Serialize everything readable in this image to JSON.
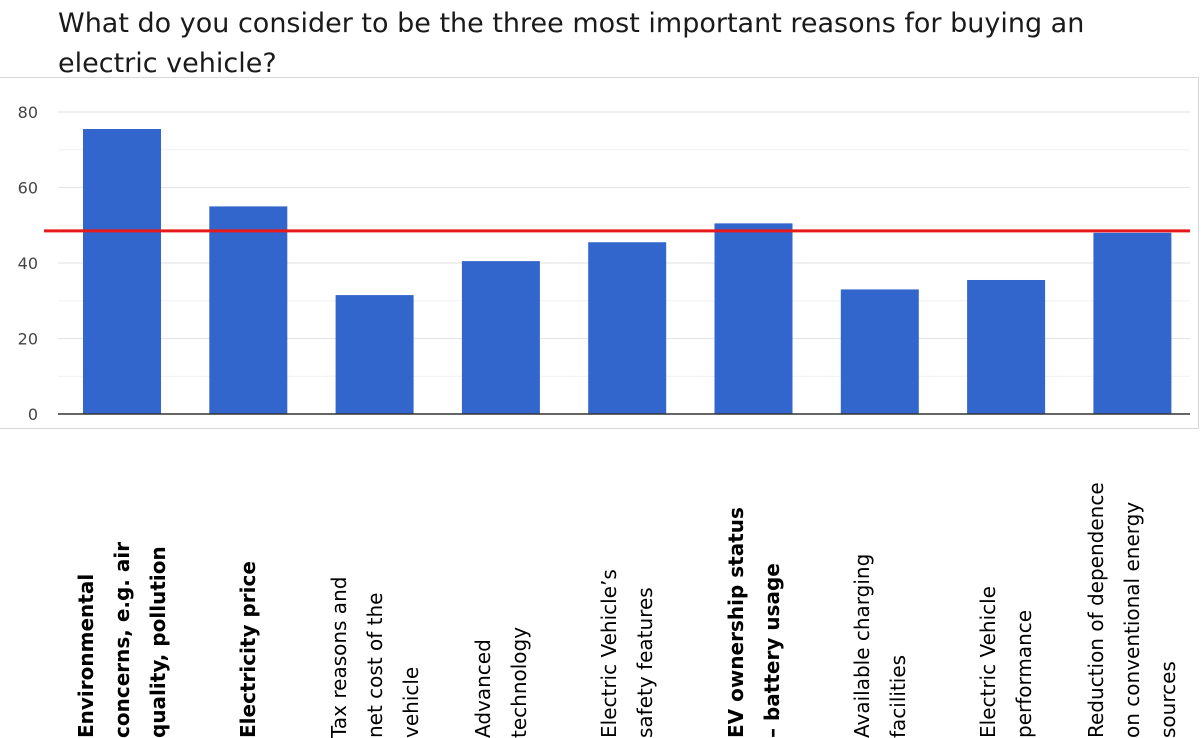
{
  "title": "What do you consider to be the three most important reasons for buying an electric vehicle?",
  "chart_data": {
    "type": "bar",
    "title": "What do you consider to be the three most important reasons for buying an electric vehicle?",
    "xlabel": "",
    "ylabel": "",
    "ylim": [
      0,
      80
    ],
    "yticks": [
      0,
      20,
      40,
      60,
      80
    ],
    "grid": true,
    "categories": [
      "Environmental concerns, e.g. air quality, pollution",
      "Electricity price",
      "Tax reasons and net cost of the vehicle",
      "Advanced technology",
      "Electric Vehicle’s safety features",
      "EV ownership status – battery usage",
      "Available charging facilities",
      "Electric Vehicle performance",
      "Reduction of dependence on conventional energy sources"
    ],
    "category_lines": [
      [
        "Environmental",
        "concerns, e.g. air",
        "quality, pollution"
      ],
      [
        "Electricity price"
      ],
      [
        "Tax reasons and",
        "net cost of the",
        "vehicle"
      ],
      [
        "Advanced",
        "technology"
      ],
      [
        "Electric Vehicle’s",
        "safety features"
      ],
      [
        "EV ownership status",
        "– battery usage"
      ],
      [
        "Available charging",
        "facilities"
      ],
      [
        "Electric Vehicle",
        "performance"
      ],
      [
        "Reduction of dependence",
        "on conventional energy",
        "sources"
      ]
    ],
    "bold_categories": [
      true,
      true,
      false,
      false,
      false,
      true,
      false,
      false,
      false
    ],
    "values": [
      75.5,
      55,
      31.5,
      40.5,
      45.5,
      50.5,
      33,
      35.5,
      48
    ],
    "reference_line": 48.5,
    "colors": {
      "bar": "#3366cc",
      "reference_line": "#e8191a",
      "grid": "#e6e6e6",
      "axis": "#333333"
    }
  }
}
